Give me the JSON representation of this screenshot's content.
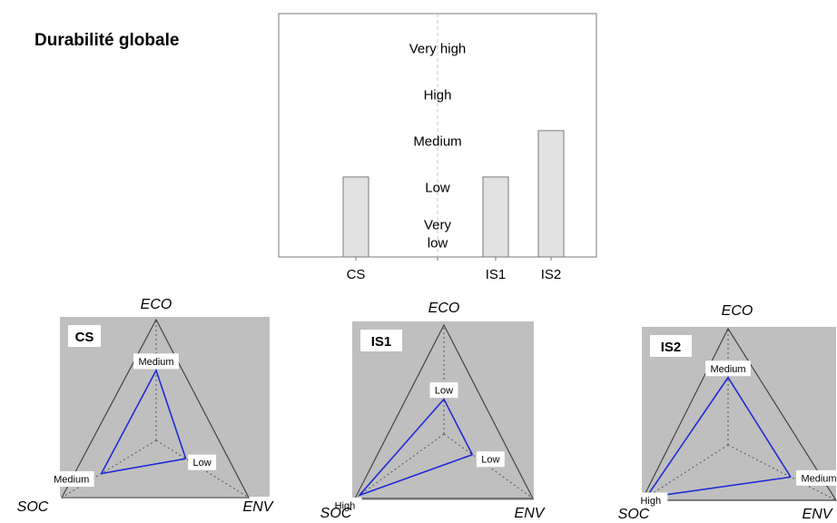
{
  "title": "Durabilité globale",
  "colors": {
    "bar_fill": "#e2e2e2",
    "bar_stroke": "#7a7a7a",
    "panel_bg": "#bfbfbf",
    "line": "#1f2bd6"
  },
  "chart_data": [
    {
      "type": "bar",
      "title": "",
      "categories": [
        "CS",
        "IS1",
        "IS2"
      ],
      "category_ticks": [
        "CS",
        "",
        "IS1",
        "IS2"
      ],
      "levels": [
        "Very low",
        "Low",
        "Medium",
        "High",
        "Very high"
      ],
      "level_labels": [
        [
          "Very",
          "low"
        ],
        [
          "Low"
        ],
        [
          "Medium"
        ],
        [
          "High"
        ],
        [
          "Very high"
        ]
      ],
      "values": [
        2,
        2,
        3
      ],
      "ylim": [
        0,
        5
      ],
      "grid": false
    },
    {
      "type": "radar",
      "panel_label": "CS",
      "axes": [
        "ECO",
        "ENV",
        "SOC"
      ],
      "values": {
        "ECO": "Medium",
        "ENV": "Low",
        "SOC": "Medium"
      }
    },
    {
      "type": "radar",
      "panel_label": "IS1",
      "axes": [
        "ECO",
        "ENV",
        "SOC"
      ],
      "values": {
        "ECO": "Low",
        "ENV": "Low",
        "SOC": "High"
      }
    },
    {
      "type": "radar",
      "panel_label": "IS2",
      "axes": [
        "ECO",
        "ENV",
        "SOC"
      ],
      "values": {
        "ECO": "Medium",
        "ENV": "Medium",
        "SOC": "High"
      }
    }
  ]
}
